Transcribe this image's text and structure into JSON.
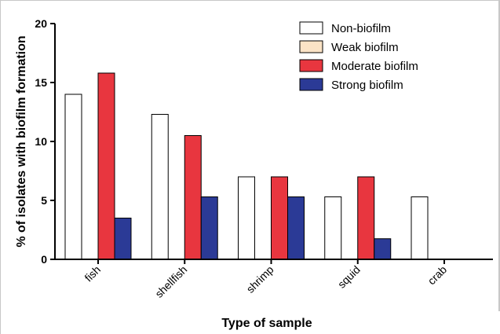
{
  "chart_data": {
    "type": "bar",
    "title": "",
    "xlabel": "Type of sample",
    "ylabel": "% of isolates with biofilm formation",
    "categories": [
      "fish",
      "shellfish",
      "shrimp",
      "squid",
      "crab"
    ],
    "ylim": [
      0,
      20
    ],
    "yticks": [
      "0",
      "5",
      "10",
      "15",
      "20"
    ],
    "grid": false,
    "legend_position": "top-right",
    "series": [
      {
        "name": "Non-biofilm",
        "color": "#ffffff",
        "values": [
          14.0,
          12.3,
          7.0,
          5.3,
          5.3
        ]
      },
      {
        "name": "Weak biofilm",
        "color": "#fbe3c6",
        "values": [
          0,
          0,
          0,
          0,
          0
        ]
      },
      {
        "name": "Moderate biofilm",
        "color": "#e8363f",
        "values": [
          15.8,
          10.5,
          7.0,
          7.0,
          0
        ]
      },
      {
        "name": "Strong biofilm",
        "color": "#2b3a96",
        "values": [
          3.5,
          5.3,
          5.3,
          1.75,
          0
        ]
      }
    ]
  }
}
